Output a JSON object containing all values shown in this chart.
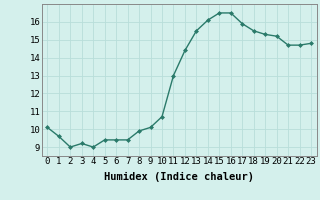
{
  "x": [
    0,
    1,
    2,
    3,
    4,
    5,
    6,
    7,
    8,
    9,
    10,
    11,
    12,
    13,
    14,
    15,
    16,
    17,
    18,
    19,
    20,
    21,
    22,
    23
  ],
  "y": [
    10.1,
    9.6,
    9.0,
    9.2,
    9.0,
    9.4,
    9.4,
    9.4,
    9.9,
    10.1,
    10.7,
    13.0,
    14.4,
    15.5,
    16.1,
    16.5,
    16.5,
    15.9,
    15.5,
    15.3,
    15.2,
    14.7,
    14.7,
    14.8
  ],
  "line_color": "#2a7a6a",
  "marker": "D",
  "marker_size": 2.0,
  "bg_color": "#d4f0ec",
  "grid_color": "#b8deda",
  "xlabel": "Humidex (Indice chaleur)",
  "ylabel": "",
  "xlim": [
    -0.5,
    23.5
  ],
  "ylim": [
    8.5,
    17.0
  ],
  "yticks": [
    9,
    10,
    11,
    12,
    13,
    14,
    15,
    16
  ],
  "xticks": [
    0,
    1,
    2,
    3,
    4,
    5,
    6,
    7,
    8,
    9,
    10,
    11,
    12,
    13,
    14,
    15,
    16,
    17,
    18,
    19,
    20,
    21,
    22,
    23
  ],
  "tick_fontsize": 6.5,
  "xlabel_fontsize": 7.5,
  "line_width": 1.0
}
